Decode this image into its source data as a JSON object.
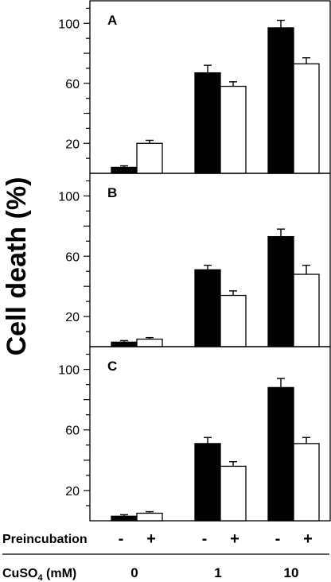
{
  "chart_data": {
    "type": "bar",
    "ylabel": "Cell death (%)",
    "yticks": [
      20,
      60,
      100
    ],
    "ylim": [
      0,
      115
    ],
    "x_row_label": "Preincubation",
    "preincubation_signs": [
      "-",
      "+",
      "-",
      "+",
      "-",
      "+"
    ],
    "dose_row_label": "CuSO",
    "dose_row_label_sub": "4",
    "dose_row_label_unit": " (mM)",
    "categories": [
      "0",
      "1",
      "10"
    ],
    "series_styles": [
      {
        "key": "minus",
        "fill": "#000000"
      },
      {
        "key": "plus",
        "fill": "#ffffff"
      }
    ],
    "panels": [
      {
        "label": "A",
        "series": [
          {
            "key": "minus",
            "values": [
              4,
              67,
              97
            ],
            "errors": [
              1,
              5,
              5
            ]
          },
          {
            "key": "plus",
            "values": [
              20,
              58,
              73
            ],
            "errors": [
              2,
              3,
              4
            ]
          }
        ]
      },
      {
        "label": "B",
        "series": [
          {
            "key": "minus",
            "values": [
              3,
              51,
              73
            ],
            "errors": [
              1,
              3,
              5
            ]
          },
          {
            "key": "plus",
            "values": [
              5,
              34,
              48
            ],
            "errors": [
              1,
              3,
              6
            ]
          }
        ]
      },
      {
        "label": "C",
        "series": [
          {
            "key": "minus",
            "values": [
              3,
              51,
              88
            ],
            "errors": [
              1,
              4,
              6
            ]
          },
          {
            "key": "plus",
            "values": [
              5,
              36,
              51
            ],
            "errors": [
              1,
              3,
              4
            ]
          }
        ]
      }
    ]
  }
}
